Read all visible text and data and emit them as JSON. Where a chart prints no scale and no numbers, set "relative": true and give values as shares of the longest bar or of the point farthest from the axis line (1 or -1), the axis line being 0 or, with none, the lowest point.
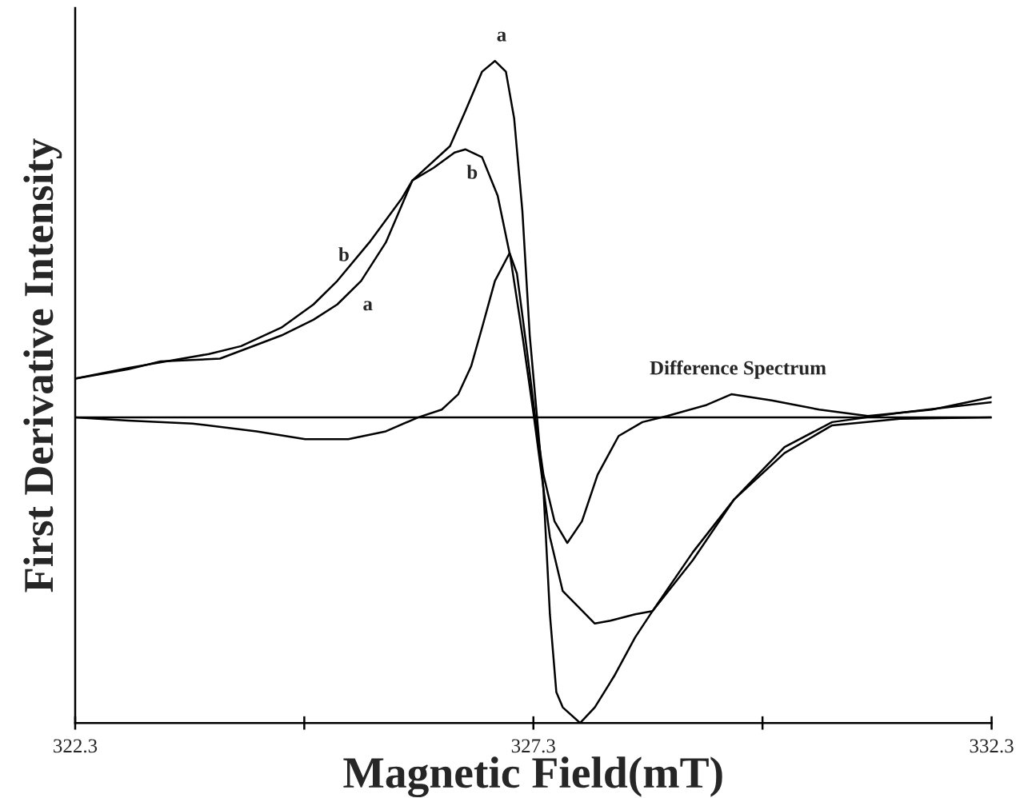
{
  "chart_data": {
    "type": "line",
    "xlabel": "Magnetic Field(mT)",
    "ylabel": "First Derivative Intensity",
    "relative": true,
    "xlim": [
      322.3,
      332.3
    ],
    "xticks": [
      322.3,
      {
        "value": 324.8,
        "label": null
      },
      327.3,
      {
        "value": 329.8,
        "label": null
      },
      332.3
    ],
    "tick_labels": "x",
    "grid": false,
    "marker": "none",
    "line_style": "solid",
    "ref_lines": [
      {
        "axis": "y",
        "value": 0,
        "color": "#000000"
      }
    ],
    "series": [
      {
        "color": "#000000",
        "x": [
          322.3,
          322.88,
          323.23,
          323.88,
          324.55,
          324.9,
          325.16,
          325.42,
          325.69,
          325.98,
          326.39,
          326.56,
          326.74,
          326.88,
          327.0,
          327.09,
          327.18,
          327.26,
          327.34,
          327.41,
          327.48,
          327.55,
          327.62,
          327.81,
          327.97,
          328.18,
          328.41,
          328.6,
          329.04,
          329.49,
          330.04,
          330.56,
          331.3,
          332.3
        ],
        "values": [
          0.109,
          0.135,
          0.157,
          0.165,
          0.23,
          0.274,
          0.317,
          0.383,
          0.491,
          0.665,
          0.761,
          0.861,
          0.97,
          1.0,
          0.97,
          0.839,
          0.578,
          0.23,
          0,
          -0.204,
          -0.552,
          -0.77,
          -0.813,
          -0.857,
          -0.813,
          -0.726,
          -0.617,
          -0.543,
          -0.4,
          -0.23,
          -0.1,
          -0.022,
          -0.004,
          0
        ]
      },
      {
        "color": "#000000",
        "x": [
          322.3,
          322.88,
          323.76,
          324.11,
          324.55,
          324.9,
          325.16,
          325.51,
          325.86,
          325.98,
          326.21,
          326.44,
          326.56,
          326.74,
          326.91,
          327.05,
          327.18,
          327.3,
          327.39,
          327.48,
          327.62,
          327.97,
          328.14,
          328.41,
          328.6,
          329.04,
          329.49,
          330.04,
          330.56,
          331.3,
          332.3
        ],
        "values": [
          0.109,
          0.139,
          0.178,
          0.2,
          0.252,
          0.317,
          0.383,
          0.491,
          0.613,
          0.665,
          0.7,
          0.743,
          0.752,
          0.73,
          0.622,
          0.448,
          0.23,
          0.013,
          -0.161,
          -0.335,
          -0.487,
          -0.578,
          -0.57,
          -0.552,
          -0.543,
          -0.378,
          -0.23,
          -0.083,
          -0.013,
          0.013,
          0.043
        ]
      },
      {
        "color": "#000000",
        "x": [
          322.3,
          322.88,
          323.58,
          324.28,
          324.81,
          325.28,
          325.69,
          326.04,
          326.3,
          326.48,
          326.62,
          326.74,
          326.88,
          327.04,
          327.12,
          327.23,
          327.32,
          327.41,
          327.53,
          327.67,
          327.83,
          328.0,
          328.23,
          328.49,
          328.76,
          329.19,
          329.46,
          329.9,
          330.42,
          330.95,
          331.65,
          332.3
        ],
        "values": [
          0,
          -0.009,
          -0.017,
          -0.039,
          -0.061,
          -0.061,
          -0.039,
          0,
          0.022,
          0.065,
          0.143,
          0.252,
          0.383,
          0.461,
          0.404,
          0.187,
          0,
          -0.161,
          -0.291,
          -0.352,
          -0.291,
          -0.161,
          -0.052,
          -0.013,
          0.004,
          0.035,
          0.065,
          0.048,
          0.022,
          0.004,
          0.022,
          0.057
        ]
      }
    ],
    "annotations": [
      {
        "text": "a",
        "x": 326.88,
        "y": 1.0
      },
      {
        "text": "a",
        "x": 325.42,
        "y": 0.383
      },
      {
        "text": "b",
        "x": 325.16,
        "y": 0.383
      },
      {
        "text": "b",
        "x": 326.56,
        "y": 0.752
      },
      {
        "text": "Difference Spectrum",
        "x": 329.46,
        "y": 0.065
      }
    ]
  }
}
